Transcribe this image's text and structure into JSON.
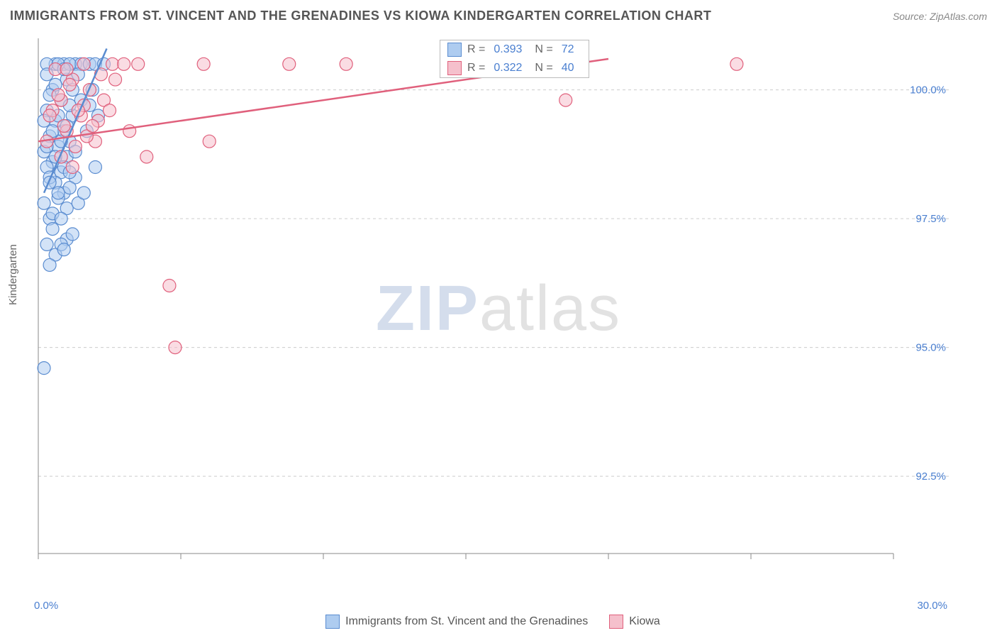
{
  "title": "IMMIGRANTS FROM ST. VINCENT AND THE GRENADINES VS KIOWA KINDERGARTEN CORRELATION CHART",
  "source": "Source: ZipAtlas.com",
  "y_axis_label": "Kindergarten",
  "watermark_a": "ZIP",
  "watermark_b": "atlas",
  "chart": {
    "type": "scatter",
    "background_color": "#ffffff",
    "grid_color": "#cccccc",
    "axis_color": "#888888",
    "label_color": "#4a7fd0",
    "x_range": [
      0,
      30
    ],
    "y_range": [
      91.0,
      101.0
    ],
    "x_ticks": [
      0,
      5,
      10,
      15,
      20,
      25,
      30
    ],
    "y_ticks": [
      92.5,
      95.0,
      97.5,
      100.0
    ],
    "x_tick_labels": [
      "0.0%",
      "",
      "",
      "",
      "",
      "",
      "30.0%"
    ],
    "y_tick_labels": [
      "92.5%",
      "95.0%",
      "97.5%",
      "100.0%"
    ],
    "gridlines_y": [
      92.5,
      95.0,
      97.5,
      100.0
    ],
    "series": [
      {
        "name": "Immigrants from St. Vincent and the Grenadines",
        "color_fill": "#aeccf0",
        "color_stroke": "#5a8cd0",
        "marker_radius": 9,
        "fill_opacity": 0.55,
        "R": "0.393",
        "N": "72",
        "regression": {
          "x1": 0.2,
          "y1": 98.0,
          "x2": 2.4,
          "y2": 100.8
        },
        "points": [
          [
            0.2,
            94.6
          ],
          [
            0.4,
            97.5
          ],
          [
            0.3,
            97.0
          ],
          [
            0.6,
            96.8
          ],
          [
            1.0,
            97.1
          ],
          [
            0.5,
            97.3
          ],
          [
            0.8,
            97.0
          ],
          [
            1.2,
            97.2
          ],
          [
            0.4,
            96.6
          ],
          [
            0.9,
            96.9
          ],
          [
            1.3,
            100.5
          ],
          [
            1.5,
            100.5
          ],
          [
            1.8,
            100.5
          ],
          [
            2.0,
            100.5
          ],
          [
            2.3,
            100.5
          ],
          [
            0.6,
            100.5
          ],
          [
            0.9,
            100.5
          ],
          [
            1.1,
            100.5
          ],
          [
            0.3,
            100.5
          ],
          [
            0.7,
            100.5
          ],
          [
            1.0,
            100.2
          ],
          [
            1.4,
            100.3
          ],
          [
            0.5,
            100.0
          ],
          [
            0.8,
            99.8
          ],
          [
            1.2,
            99.5
          ],
          [
            0.3,
            99.6
          ],
          [
            0.6,
            99.4
          ],
          [
            0.9,
            99.2
          ],
          [
            1.1,
            99.0
          ],
          [
            0.4,
            99.1
          ],
          [
            0.7,
            98.9
          ],
          [
            1.0,
            98.7
          ],
          [
            0.2,
            98.8
          ],
          [
            0.5,
            98.6
          ],
          [
            0.8,
            98.4
          ],
          [
            1.3,
            98.3
          ],
          [
            0.3,
            98.5
          ],
          [
            0.6,
            98.2
          ],
          [
            0.9,
            98.0
          ],
          [
            1.1,
            98.1
          ],
          [
            0.4,
            98.3
          ],
          [
            0.7,
            97.9
          ],
          [
            1.0,
            97.7
          ],
          [
            0.2,
            97.8
          ],
          [
            0.5,
            97.6
          ],
          [
            0.8,
            97.5
          ],
          [
            1.2,
            100.0
          ],
          [
            1.5,
            99.8
          ],
          [
            1.7,
            99.2
          ],
          [
            1.9,
            100.0
          ],
          [
            2.1,
            99.5
          ],
          [
            0.3,
            100.3
          ],
          [
            0.6,
            100.1
          ],
          [
            0.9,
            100.4
          ],
          [
            1.1,
            99.7
          ],
          [
            0.4,
            99.9
          ],
          [
            0.7,
            99.5
          ],
          [
            1.0,
            99.3
          ],
          [
            0.2,
            99.4
          ],
          [
            0.5,
            99.2
          ],
          [
            0.8,
            99.0
          ],
          [
            1.3,
            98.8
          ],
          [
            0.3,
            98.9
          ],
          [
            0.6,
            98.7
          ],
          [
            0.9,
            98.5
          ],
          [
            1.1,
            98.4
          ],
          [
            0.4,
            98.2
          ],
          [
            0.7,
            98.0
          ],
          [
            1.4,
            97.8
          ],
          [
            1.6,
            98.0
          ],
          [
            1.8,
            99.7
          ],
          [
            2.0,
            98.5
          ]
        ]
      },
      {
        "name": "Kiowa",
        "color_fill": "#f5c0cc",
        "color_stroke": "#e0607c",
        "marker_radius": 9,
        "fill_opacity": 0.55,
        "R": "0.322",
        "N": "40",
        "regression": {
          "x1": 0.0,
          "y1": 99.0,
          "x2": 20.0,
          "y2": 100.6
        },
        "points": [
          [
            2.6,
            100.5
          ],
          [
            3.0,
            100.5
          ],
          [
            3.5,
            100.5
          ],
          [
            5.8,
            100.5
          ],
          [
            8.8,
            100.5
          ],
          [
            10.8,
            100.5
          ],
          [
            24.5,
            100.5
          ],
          [
            18.5,
            99.8
          ],
          [
            6.0,
            99.0
          ],
          [
            3.8,
            98.7
          ],
          [
            4.6,
            96.2
          ],
          [
            4.8,
            95.0
          ],
          [
            1.0,
            99.2
          ],
          [
            1.5,
            99.5
          ],
          [
            2.0,
            99.0
          ],
          [
            0.8,
            99.8
          ],
          [
            1.2,
            100.2
          ],
          [
            1.8,
            100.0
          ],
          [
            0.5,
            99.6
          ],
          [
            0.9,
            99.3
          ],
          [
            1.3,
            98.9
          ],
          [
            1.7,
            99.1
          ],
          [
            0.6,
            100.4
          ],
          [
            1.1,
            100.1
          ],
          [
            1.6,
            99.7
          ],
          [
            2.1,
            99.4
          ],
          [
            0.4,
            99.5
          ],
          [
            0.7,
            99.9
          ],
          [
            1.4,
            99.6
          ],
          [
            1.9,
            99.3
          ],
          [
            2.3,
            99.8
          ],
          [
            2.7,
            100.2
          ],
          [
            0.3,
            99.0
          ],
          [
            0.8,
            98.7
          ],
          [
            1.2,
            98.5
          ],
          [
            2.5,
            99.6
          ],
          [
            3.2,
            99.2
          ],
          [
            1.0,
            100.4
          ],
          [
            2.2,
            100.3
          ],
          [
            1.6,
            100.5
          ]
        ]
      }
    ]
  },
  "legend_top": {
    "rows": [
      {
        "swatch_fill": "#aeccf0",
        "swatch_stroke": "#5a8cd0",
        "r_label": "R =",
        "r_value": "0.393",
        "n_label": "N =",
        "n_value": "72"
      },
      {
        "swatch_fill": "#f5c0cc",
        "swatch_stroke": "#e0607c",
        "r_label": "R =",
        "r_value": "0.322",
        "n_label": "N =",
        "n_value": "40"
      }
    ]
  },
  "legend_bottom": {
    "items": [
      {
        "swatch_fill": "#aeccf0",
        "swatch_stroke": "#5a8cd0",
        "label": "Immigrants from St. Vincent and the Grenadines"
      },
      {
        "swatch_fill": "#f5c0cc",
        "swatch_stroke": "#e0607c",
        "label": "Kiowa"
      }
    ]
  }
}
